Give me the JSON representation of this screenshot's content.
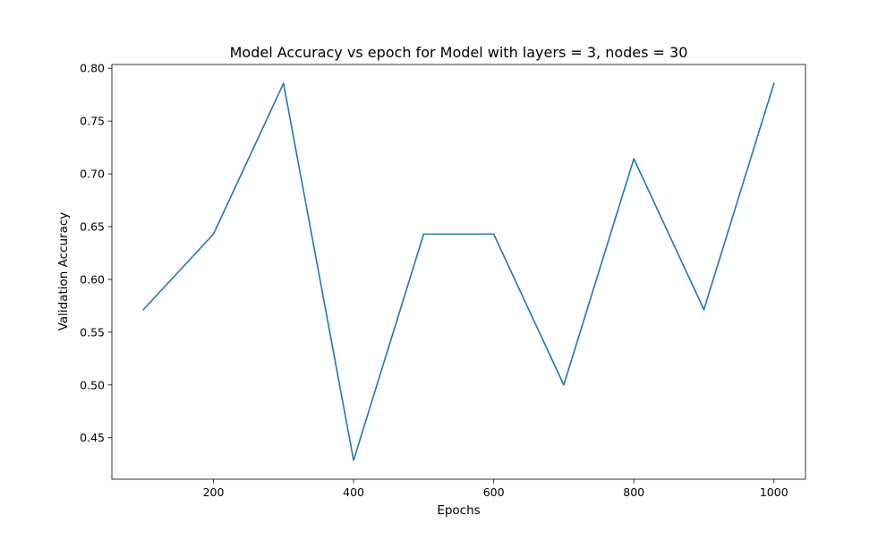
{
  "chart_data": {
    "type": "line",
    "title": "Model Accuracy vs epoch for Model with layers = 3, nodes = 30",
    "xlabel": "Epochs",
    "ylabel": "Validation Accuracy",
    "x": [
      100,
      200,
      300,
      400,
      500,
      600,
      700,
      800,
      900,
      1000
    ],
    "series": [
      {
        "values": [
          0.5714,
          0.6429,
          0.7857,
          0.4286,
          0.6429,
          0.6429,
          0.5,
          0.7143,
          0.5714,
          0.7857
        ],
        "color": "#1f77b4"
      }
    ],
    "xlim": [
      55,
      1045
    ],
    "ylim": [
      0.4107,
      0.8036
    ],
    "xticks": [
      200,
      400,
      600,
      800,
      1000
    ],
    "xtick_labels": [
      "200",
      "400",
      "600",
      "800",
      "1000"
    ],
    "yticks": [
      0.45,
      0.5,
      0.55,
      0.6,
      0.65,
      0.7,
      0.75,
      0.8
    ],
    "ytick_labels": [
      "0.45",
      "0.50",
      "0.55",
      "0.60",
      "0.65",
      "0.70",
      "0.75",
      "0.80"
    ],
    "grid": false,
    "legend": "none"
  }
}
